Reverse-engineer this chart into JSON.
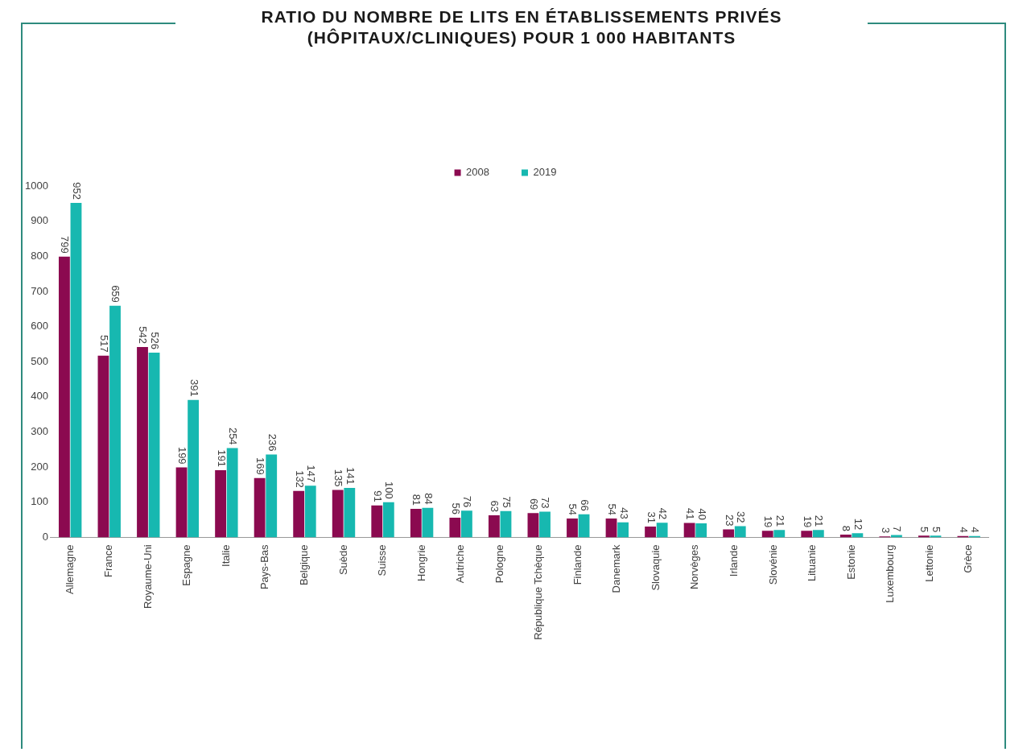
{
  "chart_data": {
    "type": "bar",
    "title": "RATIO DU NOMBRE DE LITS EN ÉTABLISSEMENTS PRIVÉS (HÔPITAUX/CLINIQUES) POUR 1 000 HABITANTS",
    "categories": [
      "Allemagne",
      "France",
      "Royaume-Uni",
      "Espagne",
      "Italie",
      "Pays-Bas",
      "Belgique",
      "Suède",
      "Suisse",
      "Hongrie",
      "Autriche",
      "Pologne",
      "République Tchèque",
      "Finlande",
      "Danemark",
      "Slovaquie",
      "Norvèges",
      "Irlande",
      "Slovénie",
      "Lituanie",
      "Estonie",
      "Luxembourg",
      "Lettonie",
      "Grèce"
    ],
    "series": [
      {
        "name": "2008",
        "color": "#8b0a50",
        "values": [
          799,
          517,
          542,
          199,
          191,
          169,
          132,
          135,
          91,
          81,
          56,
          63,
          69,
          54,
          54,
          31,
          41,
          23,
          19,
          19,
          8,
          3,
          5,
          4
        ]
      },
      {
        "name": "2019",
        "color": "#17b8b0",
        "values": [
          952,
          659,
          526,
          391,
          254,
          236,
          147,
          141,
          100,
          84,
          76,
          75,
          73,
          66,
          43,
          42,
          40,
          32,
          21,
          21,
          12,
          7,
          5,
          4
        ]
      }
    ],
    "ylim": [
      0,
      1000
    ],
    "yticks": [
      0,
      100,
      200,
      300,
      400,
      500,
      600,
      700,
      800,
      900,
      1000
    ],
    "grid": false,
    "legend": "top",
    "data_labels": true
  }
}
